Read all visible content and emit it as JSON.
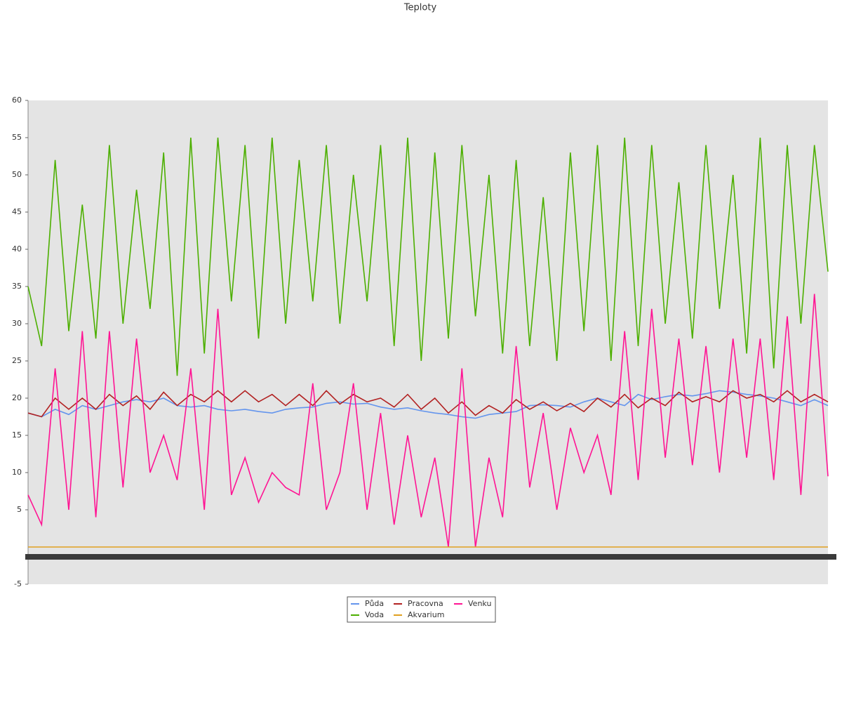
{
  "chart_data": {
    "type": "line",
    "title": "Teploty",
    "ylim": [
      -5,
      60
    ],
    "yticks": [
      -5,
      5,
      10,
      15,
      20,
      25,
      30,
      35,
      40,
      45,
      50,
      55,
      60
    ],
    "legend": "bottom",
    "series": [
      {
        "name": "Půda",
        "color": "#6495ed",
        "values": [
          18,
          17.5,
          18.5,
          17.8,
          19,
          18.5,
          19,
          19.5,
          19.8,
          19.5,
          20,
          19,
          18.8,
          19,
          18.5,
          18.3,
          18.5,
          18.2,
          18,
          18.5,
          18.7,
          18.8,
          19.3,
          19.5,
          19.2,
          19.3,
          18.8,
          18.5,
          18.7,
          18.3,
          18,
          17.8,
          17.5,
          17.3,
          17.8,
          18,
          18.2,
          19,
          19.1,
          19,
          18.8,
          19.5,
          20,
          19.5,
          19,
          20.5,
          19.8,
          20.2,
          20.5,
          20.3,
          20.6,
          21,
          20.8,
          20.5,
          20.3,
          20,
          19.5,
          19,
          19.8,
          19
        ]
      },
      {
        "name": "Pracovna",
        "color": "#b22222",
        "values": [
          18,
          17.5,
          20,
          18.5,
          20,
          18.5,
          20.5,
          19,
          20.3,
          18.5,
          20.8,
          19,
          20.5,
          19.5,
          21,
          19.5,
          21,
          19.5,
          20.5,
          19,
          20.5,
          19,
          21,
          19.2,
          20.5,
          19.5,
          20,
          18.8,
          20.5,
          18.5,
          20,
          18,
          19.5,
          17.7,
          19,
          18,
          19.8,
          18.5,
          19.5,
          18.3,
          19.3,
          18.2,
          20,
          18.8,
          20.5,
          18.7,
          20,
          19,
          20.8,
          19.5,
          20.2,
          19.5,
          21,
          20,
          20.5,
          19.5,
          21,
          19.5,
          20.5,
          19.5
        ]
      },
      {
        "name": "Venku",
        "color": "#ff1493",
        "values": [
          7,
          3,
          24,
          5,
          29,
          4,
          29,
          8,
          28,
          10,
          15,
          9,
          24,
          5,
          32,
          7,
          12,
          6,
          10,
          8,
          7,
          22,
          5,
          10,
          22,
          5,
          18,
          3,
          15,
          4,
          12,
          0,
          24,
          0,
          12,
          4,
          27,
          8,
          18,
          5,
          16,
          10,
          15,
          7,
          29,
          9,
          32,
          12,
          28,
          11,
          27,
          10,
          28,
          12,
          28,
          9,
          31,
          7,
          34,
          9.5
        ]
      },
      {
        "name": "Voda",
        "color": "#4caf00",
        "values": [
          35,
          27,
          52,
          29,
          46,
          28,
          54,
          30,
          48,
          32,
          53,
          23,
          55,
          26,
          55,
          33,
          54,
          28,
          55,
          30,
          52,
          33,
          54,
          30,
          50,
          33,
          54,
          27,
          55,
          25,
          53,
          28,
          54,
          31,
          50,
          26,
          52,
          27,
          47,
          25,
          53,
          29,
          54,
          25,
          55,
          27,
          54,
          30,
          49,
          28,
          54,
          32,
          50,
          26,
          55,
          24,
          54,
          30,
          54,
          37
        ]
      },
      {
        "name": "Akvarium",
        "color": "#e0a020",
        "values": [
          0,
          0,
          0,
          0,
          0,
          0,
          0,
          0,
          0,
          0,
          0,
          0,
          0,
          0,
          0,
          0,
          0,
          0,
          0,
          0,
          0,
          0,
          0,
          0,
          0,
          0,
          0,
          0,
          0,
          0,
          0,
          0,
          0,
          0,
          0,
          0,
          0,
          0,
          0,
          0,
          0,
          0,
          0,
          0,
          0,
          0,
          0,
          0,
          0,
          0,
          0,
          0,
          0,
          0,
          0,
          0,
          0,
          0,
          0,
          0
        ]
      }
    ]
  }
}
